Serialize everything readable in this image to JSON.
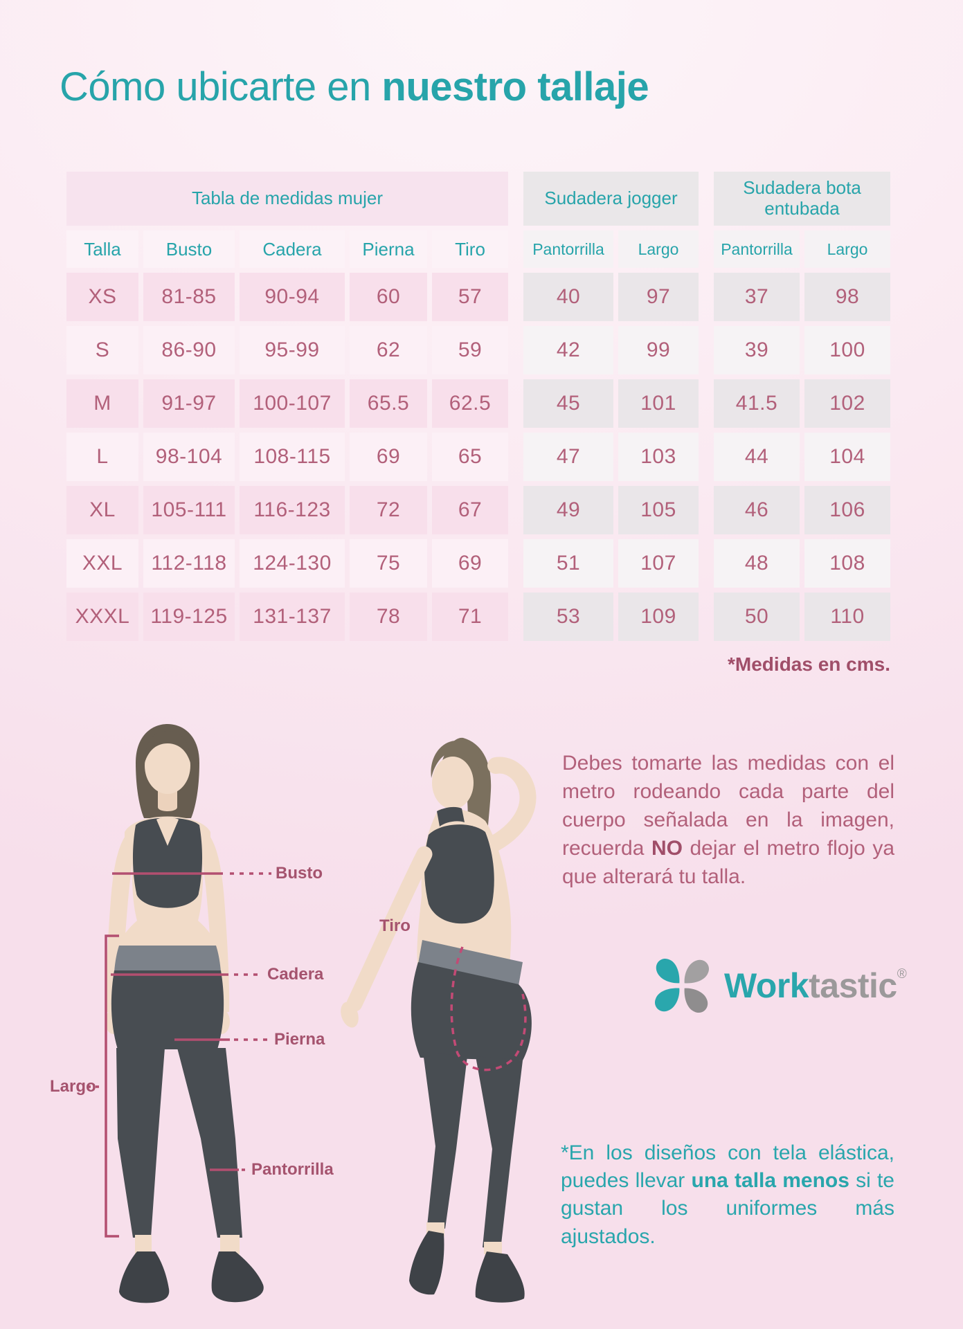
{
  "title": {
    "regular": "Cómo ubicarte en ",
    "bold": "nuestro tallaje"
  },
  "table": {
    "group_headers": [
      {
        "label": "Tabla de medidas mujer",
        "theme": "pink"
      },
      {
        "label": "Sudadera jogger",
        "theme": "gray"
      },
      {
        "label": "Sudadera bota entubada",
        "theme": "gray"
      }
    ],
    "columns": [
      "Talla",
      "Busto",
      "Cadera",
      "Pierna",
      "Tiro",
      "Pantorrilla",
      "Largo",
      "Pantorrilla",
      "Largo"
    ],
    "rows": [
      [
        "XS",
        "81-85",
        "90-94",
        "60",
        "57",
        "40",
        "97",
        "37",
        "98"
      ],
      [
        "S",
        "86-90",
        "95-99",
        "62",
        "59",
        "42",
        "99",
        "39",
        "100"
      ],
      [
        "M",
        "91-97",
        "100-107",
        "65.5",
        "62.5",
        "45",
        "101",
        "41.5",
        "102"
      ],
      [
        "L",
        "98-104",
        "108-115",
        "69",
        "65",
        "47",
        "103",
        "44",
        "104"
      ],
      [
        "XL",
        "105-111",
        "116-123",
        "72",
        "67",
        "49",
        "105",
        "46",
        "106"
      ],
      [
        "XXL",
        "112-118",
        "124-130",
        "75",
        "69",
        "51",
        "107",
        "48",
        "108"
      ],
      [
        "XXXL",
        "119-125",
        "131-137",
        "78",
        "71",
        "53",
        "109",
        "50",
        "110"
      ]
    ],
    "footnote": "*Medidas en cms."
  },
  "diagram": {
    "labels": {
      "busto": "Busto",
      "cadera": "Cadera",
      "pierna": "Pierna",
      "largo": "Largo",
      "pantorrilla": "Pantorrilla",
      "tiro": "Tiro"
    }
  },
  "instructions": {
    "part1": "Debes tomarte las medidas con el metro rodeando cada parte del cuerpo señalada en la imagen, recuerda ",
    "bold": "NO",
    "part2": " dejar el metro flojo ya que alterará tu talla."
  },
  "brand": {
    "primary": "Work",
    "secondary": "tastic",
    "registered": "®"
  },
  "note": {
    "part1": "*En los diseños con tela elástica, puedes llevar ",
    "bold": "una talla menos",
    "part2": " si te gustan los uniformes más ajustados."
  },
  "colors": {
    "teal": "#27a4aa",
    "rose": "#b2607a",
    "rose_dark": "#a04e69",
    "line_rose": "#b34f70"
  }
}
